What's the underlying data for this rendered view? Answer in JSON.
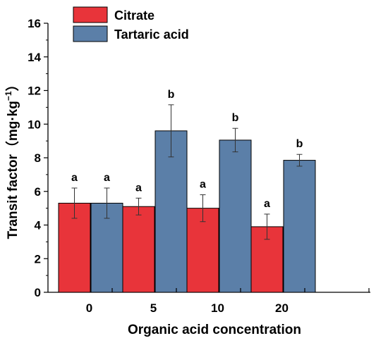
{
  "colors": {
    "citrate": "#e8343a",
    "tartaric": "#5b7fa8"
  },
  "chart_data": {
    "type": "bar",
    "title": "",
    "xlabel": "Organic acid concentration",
    "ylabel_prefix": "Transit factor（mg·kg",
    "ylabel_sup": "−1",
    "ylabel_suffix": "）",
    "ylim": [
      0,
      16
    ],
    "yticks": [
      "0",
      "2",
      "4",
      "6",
      "8",
      "10",
      "12",
      "14",
      "16"
    ],
    "categories": [
      "0",
      "5",
      "10",
      "20"
    ],
    "legend_position": "top-left",
    "grid": false,
    "series": [
      {
        "name": "Citrate",
        "color": "#e8343a",
        "values": [
          5.3,
          5.1,
          5.0,
          3.9
        ],
        "errors": [
          0.9,
          0.5,
          0.8,
          0.75
        ],
        "labels": [
          "a",
          "a",
          "a",
          "a"
        ]
      },
      {
        "name": "Tartaric acid",
        "color": "#5b7fa8",
        "values": [
          5.3,
          9.6,
          9.05,
          7.85
        ],
        "errors": [
          0.9,
          1.55,
          0.7,
          0.35
        ],
        "labels": [
          "a",
          "b",
          "b",
          "b"
        ]
      }
    ]
  }
}
